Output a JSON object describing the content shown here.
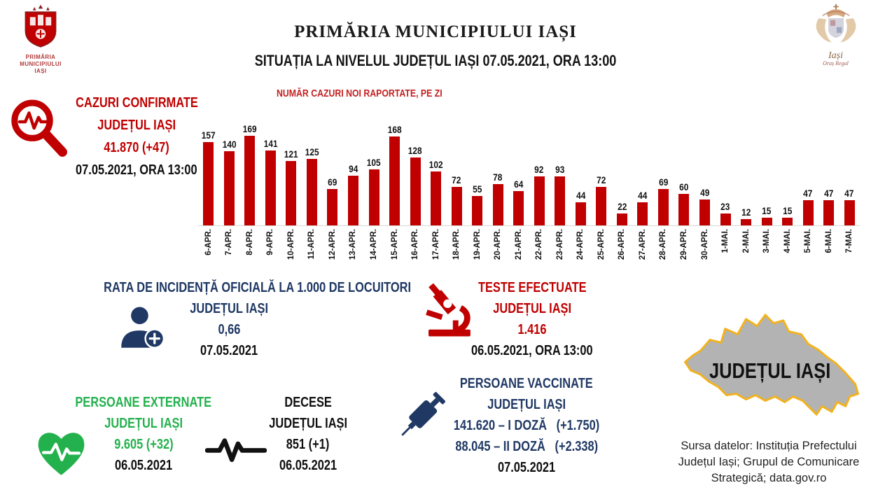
{
  "header": {
    "logo_left_caption1": "PRIMĂRIA",
    "logo_left_caption2": "MUNICIPIULUI",
    "logo_left_caption3": "IAȘI",
    "title": "PRIMĂRIA MUNICIPIULUI IAȘI",
    "subtitle": "SITUAȚIA LA NIVELUL JUDEȚUL IAȘI 07.05.2021, ORA 13:00",
    "logo_right_caption1": "Iași",
    "logo_right_caption2": "Oraș Regal"
  },
  "confirmed": {
    "title_line1": "CAZURI CONFIRMATE",
    "title_line2": "JUDEȚUL IAȘI",
    "value": "41.870 (+47)",
    "date": "07.05.2021, ORA 13:00"
  },
  "chart_data": {
    "type": "bar",
    "title": "NUMĂR CAZURI NOI RAPORTATE, PE ZI",
    "categories": [
      "6-APR.",
      "7-APR.",
      "8-APR.",
      "9-APR.",
      "10-APR.",
      "11-APR.",
      "12-APR.",
      "13-APR.",
      "14-APR.",
      "15-APR.",
      "16-APR.",
      "17-APR.",
      "18-APR.",
      "19-APR.",
      "20-APR.",
      "21-APR.",
      "22-APR.",
      "23-APR.",
      "24-APR.",
      "25-APR.",
      "26-APR.",
      "27-APR.",
      "28-APR.",
      "29-APR.",
      "30-APR.",
      "1-MAI.",
      "2-MAI.",
      "3-MAI.",
      "4-MAI.",
      "5-MAI.",
      "6-MAI.",
      "7-MAI."
    ],
    "values": [
      157,
      140,
      169,
      141,
      121,
      125,
      69,
      94,
      105,
      168,
      128,
      102,
      72,
      55,
      78,
      64,
      92,
      93,
      44,
      72,
      22,
      44,
      69,
      60,
      49,
      23,
      12,
      15,
      15,
      47,
      47,
      47
    ],
    "bar_color": "#c00000",
    "xlabel": "",
    "ylabel": "",
    "ylim": [
      0,
      180
    ],
    "grid": false,
    "legend": "none",
    "data_labels": true
  },
  "incidence": {
    "title": "RATA DE INCIDENȚĂ OFICIALĂ LA 1.000 DE LOCUITORI",
    "subtitle": "JUDEȚUL  IAȘI",
    "value": "0,66",
    "date": "07.05.2021"
  },
  "tests": {
    "title": "TESTE EFECTUATE",
    "subtitle": "JUDEȚUL IAȘI",
    "value": "1.416",
    "date": "06.05.2021, ORA 13:00"
  },
  "discharged": {
    "title": "PERSOANE EXTERNATE",
    "subtitle": "JUDEȚUL IAȘI",
    "value": "9.605 (+32)",
    "date": "06.05.2021"
  },
  "deaths": {
    "title": "DECESE",
    "subtitle": "JUDEȚUL IAȘI",
    "value": "851 (+1)",
    "date": "06.05.2021"
  },
  "vaccinated": {
    "title": "PERSOANE VACCINATE",
    "subtitle": "JUDEȚUL IAȘI",
    "dose1": "141.620 – I DOZĂ   (+1.750)",
    "dose2": "88.045 – II DOZĂ   (+2.338)",
    "date": "07.05.2021"
  },
  "map": {
    "label": "JUDEȚUL IAȘI"
  },
  "source": {
    "line1": "Sursa datelor: Instituția Prefectului",
    "line2": "Județul Iași; Grupul de Comunicare",
    "line3": "Strategică; data.gov.ro"
  },
  "colors": {
    "red": "#c00000",
    "dark_blue": "#1f3864",
    "green": "#23b14d",
    "black": "#0f0f0f",
    "map_gray": "#b3b3b3",
    "map_border": "#f2b21d"
  }
}
